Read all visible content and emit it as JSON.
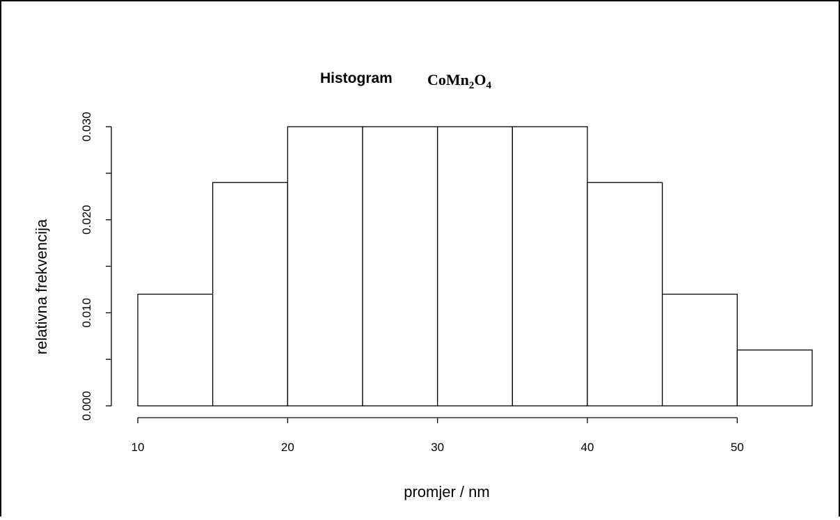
{
  "chart_data": {
    "type": "bar",
    "title": "Histogram",
    "title_formula": {
      "parts": [
        "CoMn",
        "2",
        "O",
        "4"
      ]
    },
    "xlabel": "promjer / nm",
    "ylabel": "relativna frekvencija",
    "bin_edges": [
      10,
      15,
      20,
      25,
      30,
      35,
      40,
      45,
      50,
      55
    ],
    "values": [
      0.012,
      0.024,
      0.03,
      0.03,
      0.03,
      0.03,
      0.024,
      0.012,
      0.006
    ],
    "xlim": [
      10,
      55
    ],
    "ylim": [
      0,
      0.03
    ],
    "x_ticks": [
      10,
      20,
      30,
      40,
      50
    ],
    "x_tick_labels": [
      "10",
      "20",
      "30",
      "40",
      "50"
    ],
    "y_ticks": [
      0,
      0.005,
      0.01,
      0.015,
      0.02,
      0.025,
      0.03
    ],
    "y_tick_labels": [
      "0.000",
      "",
      "0.010",
      "",
      "0.020",
      "",
      "0.030"
    ],
    "grid": false,
    "legend": "none"
  }
}
